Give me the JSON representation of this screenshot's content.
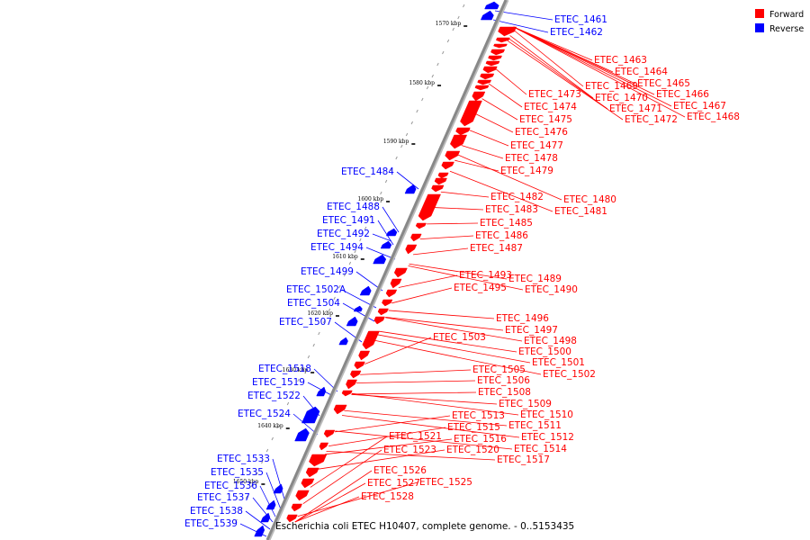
{
  "caption": "Escherichia coli ETEC H10407, complete genome. - 0..5153435",
  "legend": [
    {
      "label": "Forward",
      "color": "#ff0000"
    },
    {
      "label": "Reverse",
      "color": "#0000ff"
    }
  ],
  "colors": {
    "forward": "#ff0000",
    "reverse": "#0000ff",
    "backbone": "#888888"
  },
  "ticks": [
    "1570 kbp",
    "1580 kbp",
    "1590 kbp",
    "1600 kbp",
    "1610 kbp",
    "1620 kbp",
    "1630 kbp",
    "1640 kbp",
    "1650 kbp"
  ],
  "genes": {
    "reverse": [
      "ETEC_1461",
      "ETEC_1462",
      "ETEC_1484",
      "ETEC_1488",
      "ETEC_1491",
      "ETEC_1492",
      "ETEC_1494",
      "ETEC_1499",
      "ETEC_1502A",
      "ETEC_1504",
      "ETEC_1507",
      "ETEC_1518",
      "ETEC_1519",
      "ETEC_1522",
      "ETEC_1524",
      "ETEC_1533",
      "ETEC_1535",
      "ETEC_1536",
      "ETEC_1537",
      "ETEC_1538",
      "ETEC_1539"
    ],
    "forward": [
      "ETEC_1463",
      "ETEC_1464",
      "ETEC_1465",
      "ETEC_1466",
      "ETEC_1467",
      "ETEC_1468",
      "ETEC_1469",
      "ETEC_1470",
      "ETEC_1471",
      "ETEC_1472",
      "ETEC_1473",
      "ETEC_1474",
      "ETEC_1475",
      "ETEC_1476",
      "ETEC_1477",
      "ETEC_1478",
      "ETEC_1479",
      "ETEC_1480",
      "ETEC_1481",
      "ETEC_1482",
      "ETEC_1483",
      "ETEC_1485",
      "ETEC_1486",
      "ETEC_1487",
      "ETEC_1489",
      "ETEC_1490",
      "ETEC_1493",
      "ETEC_1495",
      "ETEC_1496",
      "ETEC_1497",
      "ETEC_1498",
      "ETEC_1500",
      "ETEC_1501",
      "ETEC_1502",
      "ETEC_1503",
      "ETEC_1505",
      "ETEC_1506",
      "ETEC_1508",
      "ETEC_1509",
      "ETEC_1510",
      "ETEC_1511",
      "ETEC_1512",
      "ETEC_1513",
      "ETEC_1514",
      "ETEC_1515",
      "ETEC_1516",
      "ETEC_1517",
      "ETEC_1520",
      "ETEC_1521",
      "ETEC_1523",
      "ETEC_1525",
      "ETEC_1526",
      "ETEC_1527",
      "ETEC_1528"
    ]
  }
}
